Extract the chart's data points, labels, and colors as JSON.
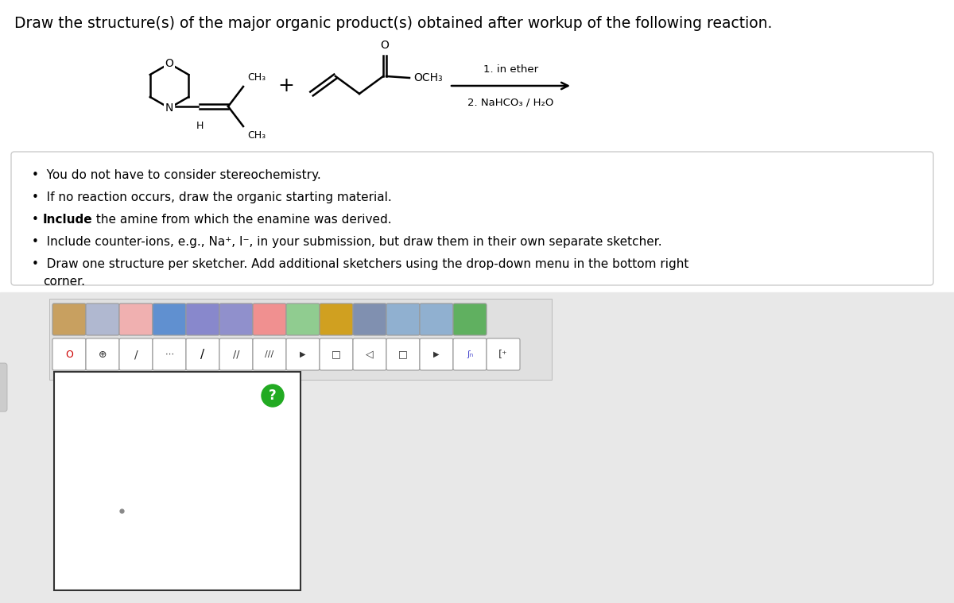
{
  "title": "Draw the structure(s) of the major organic product(s) obtained after workup of the following reaction.",
  "title_fontsize": 13.5,
  "bg_color": "#ffffff",
  "reaction_conditions_line1": "1. in ether",
  "reaction_conditions_line2": "2. NaHCO₃ / H₂O",
  "bullet_box_border": "#cccccc",
  "bullet_box_bg": "#ffffff",
  "panel_bg": "#e8e8e8",
  "sketcher_bg": "#ffffff",
  "toolbar_bg": "#e0e0e0",
  "toolbar_border": "#aaaaaa",
  "canvas_border": "#333333",
  "icon_border": "#aaaaaa"
}
